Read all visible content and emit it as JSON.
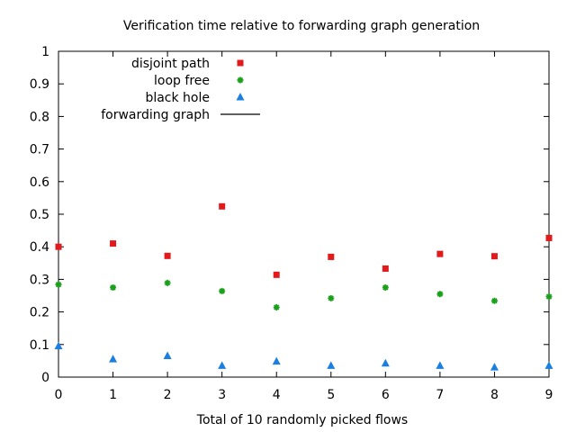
{
  "chart_data": {
    "type": "scatter",
    "title": "Verification time relative to forwarding graph generation",
    "xlabel": "Total of 10 randomly picked flows",
    "ylabel": "",
    "xlim": [
      0,
      9
    ],
    "ylim": [
      0,
      1
    ],
    "x": [
      0,
      1,
      2,
      3,
      4,
      5,
      6,
      7,
      8,
      9
    ],
    "x_ticks": [
      "0",
      "1",
      "2",
      "3",
      "4",
      "5",
      "6",
      "7",
      "8",
      "9"
    ],
    "y_ticks": [
      "0",
      "0.1",
      "0.2",
      "0.3",
      "0.4",
      "0.5",
      "0.6",
      "0.7",
      "0.8",
      "0.9",
      "1"
    ],
    "grid": false,
    "legend_position": "top-left",
    "series": [
      {
        "name": "disjoint path",
        "marker": "square",
        "color": "#e31a1c",
        "values": [
          0.4,
          0.41,
          0.372,
          0.524,
          0.314,
          0.369,
          0.333,
          0.378,
          0.371,
          0.427
        ]
      },
      {
        "name": "loop free",
        "marker": "star",
        "color": "#1aa01a",
        "values": [
          0.284,
          0.275,
          0.289,
          0.264,
          0.214,
          0.242,
          0.275,
          0.255,
          0.234,
          0.247
        ]
      },
      {
        "name": "black hole",
        "marker": "triangle",
        "color": "#1a7fe0",
        "values": [
          0.095,
          0.055,
          0.065,
          0.035,
          0.048,
          0.035,
          0.042,
          0.035,
          0.03,
          0.035
        ]
      },
      {
        "name": "forwarding graph",
        "marker": "line",
        "color": "#000000",
        "values": []
      }
    ]
  }
}
